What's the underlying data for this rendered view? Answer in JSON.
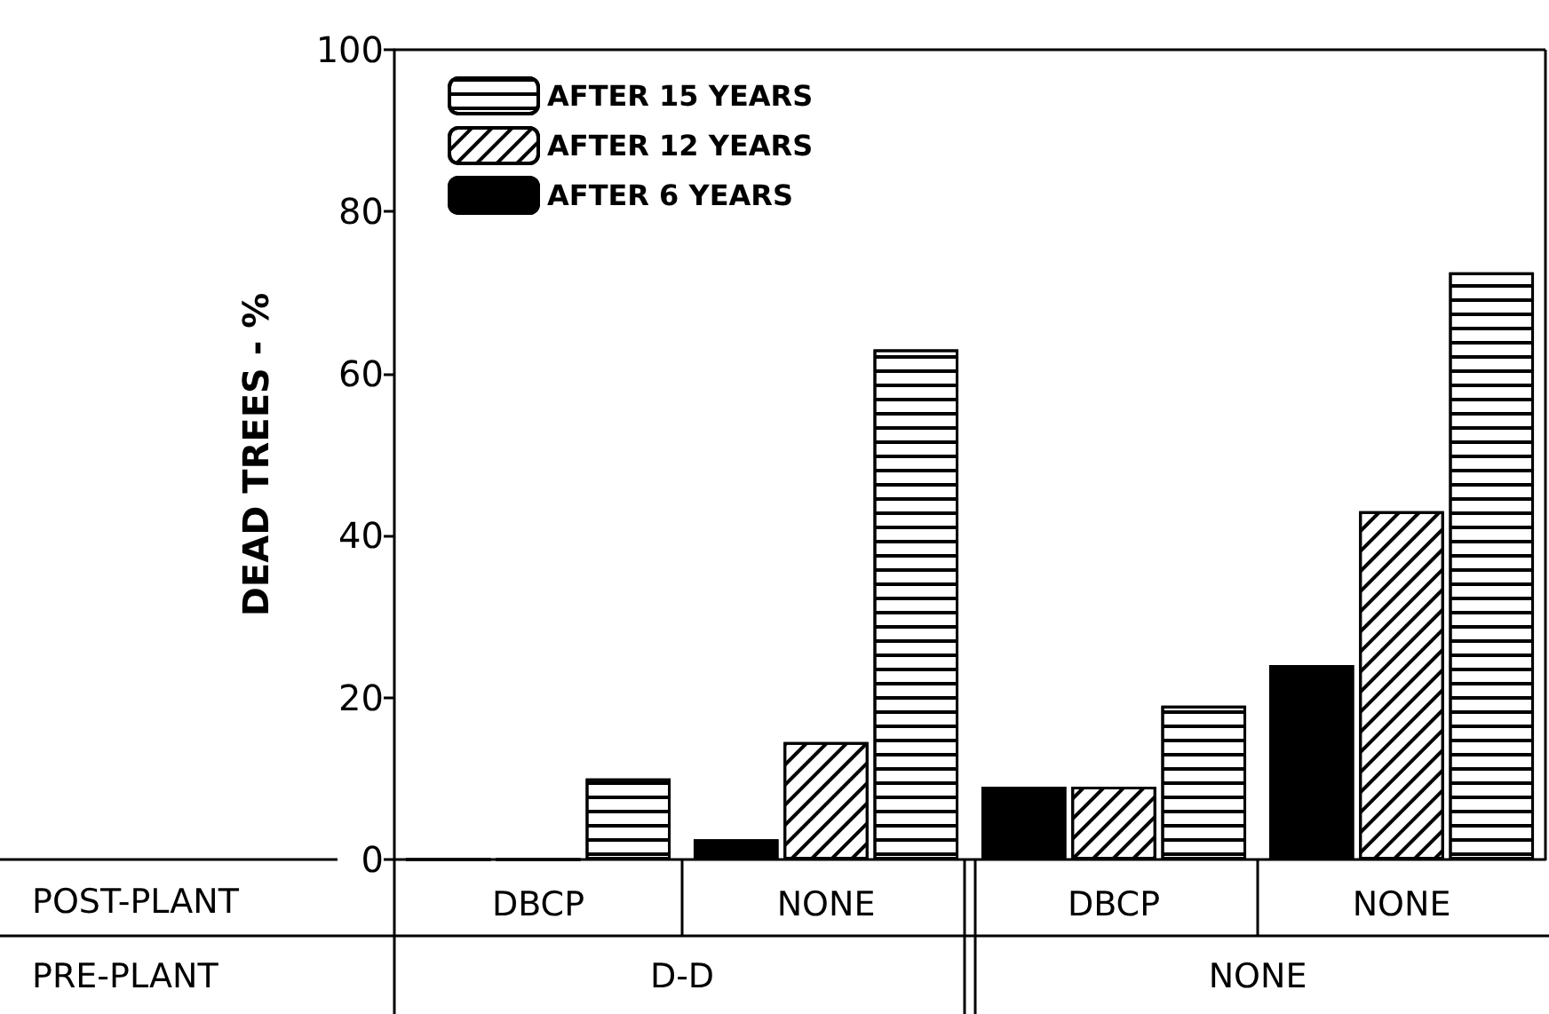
{
  "chart_data": {
    "type": "bar",
    "ylabel": "DEAD TREES - %",
    "categories": [
      "DBCP",
      "NONE",
      "DBCP",
      "NONE"
    ],
    "series": [
      {
        "name": "AFTER 6 YEARS",
        "color": "#000000",
        "values": [
          0,
          2.5,
          9,
          24
        ]
      },
      {
        "name": "AFTER 12 YEARS",
        "color": "#ffffff",
        "values": [
          0,
          14.5,
          9,
          43
        ]
      },
      {
        "name": "AFTER 15 YEARS",
        "color": "#ffffff",
        "values": [
          10,
          63,
          19,
          72.5
        ]
      }
    ],
    "ylim": [
      0,
      100
    ],
    "yticks": [
      0,
      20,
      40,
      60,
      80,
      100
    ],
    "grid": false,
    "legend": "top left",
    "annotations": [
      "POST-PLANT",
      "PRE-PLANT",
      "D-D",
      "NONE"
    ]
  }
}
